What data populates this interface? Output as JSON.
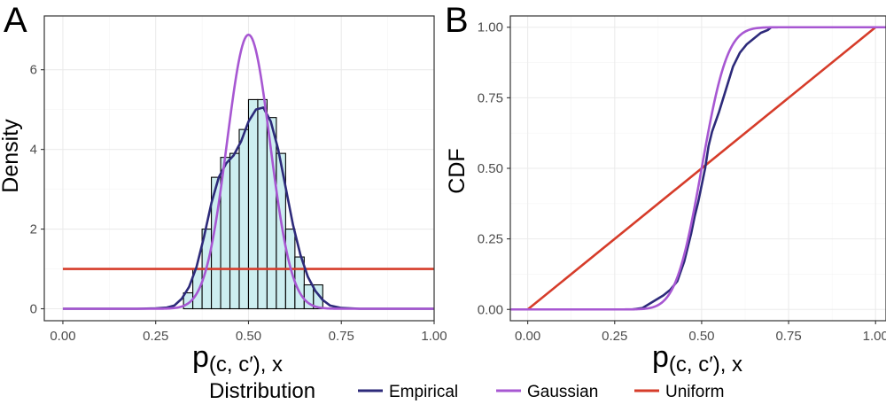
{
  "chart_data": [
    {
      "panel": "A",
      "type": "histogram+line",
      "ylabel": "Density",
      "xlabel": {
        "main": "p",
        "sub": "(c, c′), x"
      },
      "xlim": [
        -0.05,
        1.0
      ],
      "ylim": [
        -0.3,
        7.35
      ],
      "x_ticks": [
        0.0,
        0.25,
        0.5,
        0.75,
        1.0
      ],
      "x_tick_labels": [
        "0.00",
        "0.25",
        "0.50",
        "0.75",
        "1.00"
      ],
      "y_ticks": [
        0,
        2,
        4,
        6
      ],
      "y_tick_labels": [
        "0",
        "2",
        "4",
        "6"
      ],
      "grid": true,
      "histogram": {
        "bin_width": 0.025,
        "fill": "#cdeef0",
        "stroke": "#000000",
        "bins_left": [
          0.325,
          0.35,
          0.375,
          0.4,
          0.425,
          0.45,
          0.475,
          0.5,
          0.525,
          0.55,
          0.575,
          0.6,
          0.625,
          0.65,
          0.675
        ],
        "density": [
          0.4,
          1.0,
          2.0,
          3.3,
          3.8,
          3.9,
          4.5,
          5.25,
          5.25,
          4.8,
          3.9,
          2.0,
          1.3,
          0.6,
          0.6
        ]
      },
      "series": [
        {
          "name": "Empirical",
          "color": "#2d2a7a",
          "x": [
            0.0,
            0.2,
            0.25,
            0.28,
            0.3,
            0.32,
            0.34,
            0.36,
            0.38,
            0.4,
            0.42,
            0.44,
            0.46,
            0.48,
            0.5,
            0.52,
            0.54,
            0.56,
            0.58,
            0.6,
            0.62,
            0.64,
            0.66,
            0.68,
            0.7,
            0.72,
            0.75,
            0.8,
            1.0
          ],
          "y": [
            0,
            0,
            0.01,
            0.03,
            0.08,
            0.25,
            0.55,
            1.05,
            1.8,
            2.65,
            3.3,
            3.65,
            3.85,
            4.2,
            4.7,
            5.0,
            5.05,
            4.7,
            4.0,
            3.05,
            2.1,
            1.35,
            0.8,
            0.45,
            0.22,
            0.08,
            0.02,
            0,
            0
          ]
        },
        {
          "name": "Gaussian",
          "color": "#a757d2",
          "mean": 0.5,
          "sd": 0.058,
          "range": [
            0.0,
            1.0
          ]
        },
        {
          "name": "Uniform",
          "color": "#d63c2a",
          "x": [
            0.0,
            1.0
          ],
          "y": [
            1,
            1
          ]
        }
      ]
    },
    {
      "panel": "B",
      "type": "line",
      "ylabel": "CDF",
      "xlabel": {
        "main": "p",
        "sub": "(c, c′), x"
      },
      "xlim": [
        -0.05,
        1.03
      ],
      "ylim": [
        -0.04,
        1.04
      ],
      "x_ticks": [
        0.0,
        0.25,
        0.5,
        0.75,
        1.0
      ],
      "x_tick_labels": [
        "0.00",
        "0.25",
        "0.50",
        "0.75",
        "1.00"
      ],
      "y_ticks": [
        0.0,
        0.25,
        0.5,
        0.75,
        1.0
      ],
      "y_tick_labels": [
        "0.00",
        "0.25",
        "0.50",
        "0.75",
        "1.00"
      ],
      "grid": true,
      "series": [
        {
          "name": "Empirical",
          "color": "#2d2a7a",
          "x": [
            -0.05,
            0.3,
            0.33,
            0.35,
            0.37,
            0.39,
            0.41,
            0.43,
            0.45,
            0.47,
            0.48,
            0.49,
            0.5,
            0.51,
            0.52,
            0.53,
            0.55,
            0.57,
            0.59,
            0.61,
            0.63,
            0.65,
            0.67,
            0.69,
            0.7,
            0.72,
            1.03
          ],
          "y": [
            0,
            0,
            0.005,
            0.02,
            0.035,
            0.05,
            0.07,
            0.1,
            0.17,
            0.27,
            0.33,
            0.38,
            0.44,
            0.5,
            0.58,
            0.63,
            0.7,
            0.78,
            0.86,
            0.91,
            0.94,
            0.96,
            0.98,
            0.99,
            1.0,
            1.0,
            1.0
          ]
        },
        {
          "name": "Gaussian",
          "color": "#a757d2",
          "mean": 0.5,
          "sd": 0.058,
          "range": [
            -0.05,
            1.03
          ]
        },
        {
          "name": "Uniform",
          "color": "#d63c2a",
          "x": [
            -0.05,
            0.0,
            1.0,
            1.03
          ],
          "y": [
            0,
            0,
            1,
            1
          ]
        }
      ]
    }
  ],
  "legend": {
    "title": "Distribution",
    "items": [
      {
        "label": "Empirical",
        "color": "#2d2a7a"
      },
      {
        "label": "Gaussian",
        "color": "#a757d2"
      },
      {
        "label": "Uniform",
        "color": "#d63c2a"
      }
    ],
    "placement": "bottom"
  }
}
